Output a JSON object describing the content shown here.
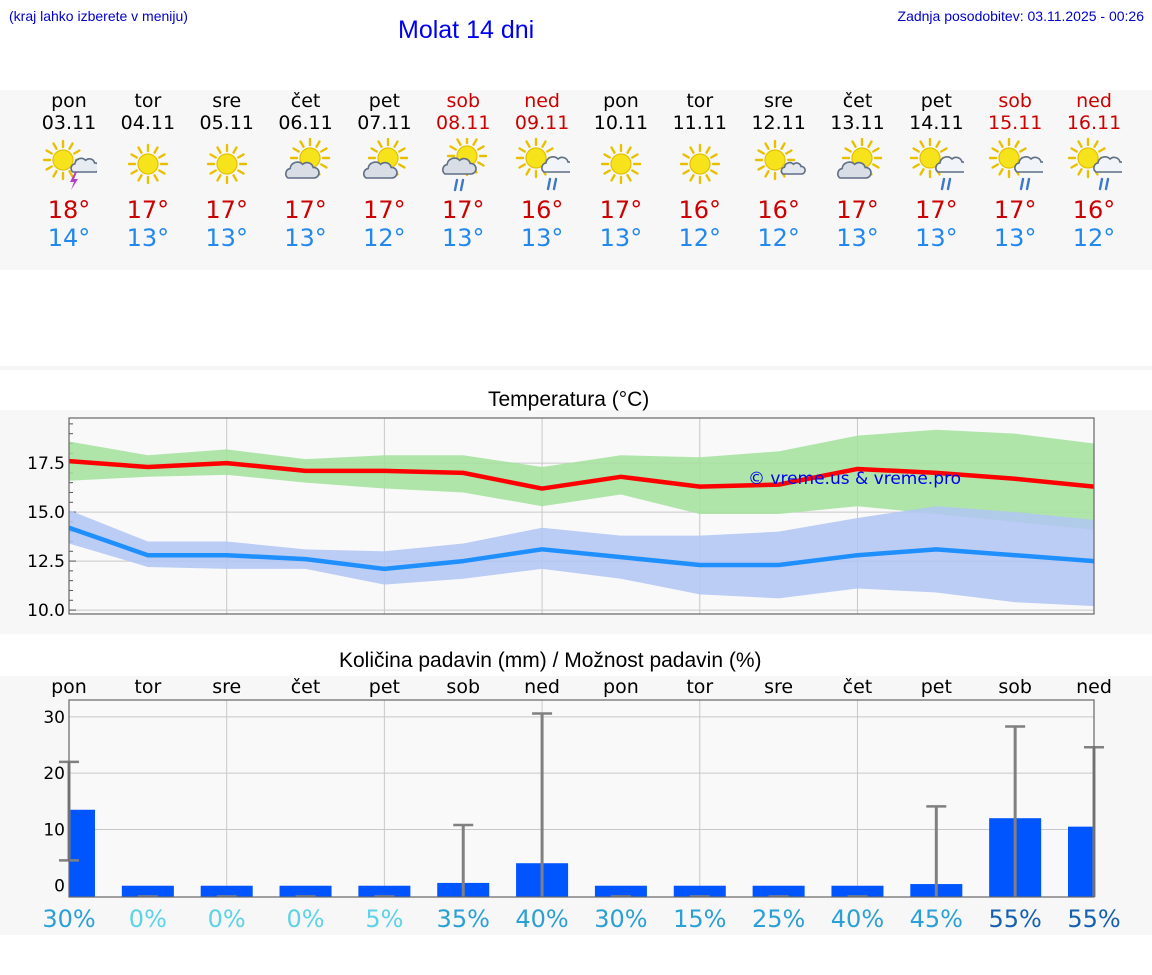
{
  "header": {
    "hint": "(kraj lahko izberete v meniju)",
    "title": "Molat 14 dni",
    "updated": "Zadnja posodobitev: 03.11.2025 - 00:26"
  },
  "days": [
    {
      "name": "pon",
      "date": "03.11",
      "weekend": false,
      "icon": "sun-thunder-icon",
      "max": "18°",
      "min": "14°"
    },
    {
      "name": "tor",
      "date": "04.11",
      "weekend": false,
      "icon": "sun-icon",
      "max": "17°",
      "min": "13°"
    },
    {
      "name": "sre",
      "date": "05.11",
      "weekend": false,
      "icon": "sun-icon",
      "max": "17°",
      "min": "13°"
    },
    {
      "name": "čet",
      "date": "06.11",
      "weekend": false,
      "icon": "sun-cloud-icon",
      "max": "17°",
      "min": "13°"
    },
    {
      "name": "pet",
      "date": "07.11",
      "weekend": false,
      "icon": "sun-cloud-icon",
      "max": "17°",
      "min": "12°"
    },
    {
      "name": "sob",
      "date": "08.11",
      "weekend": true,
      "icon": "sun-cloud-rain-icon",
      "max": "17°",
      "min": "13°"
    },
    {
      "name": "ned",
      "date": "09.11",
      "weekend": true,
      "icon": "sun-rain-icon",
      "max": "16°",
      "min": "13°"
    },
    {
      "name": "pon",
      "date": "10.11",
      "weekend": false,
      "icon": "sun-icon",
      "max": "17°",
      "min": "13°"
    },
    {
      "name": "tor",
      "date": "11.11",
      "weekend": false,
      "icon": "sun-icon",
      "max": "16°",
      "min": "12°"
    },
    {
      "name": "sre",
      "date": "12.11",
      "weekend": false,
      "icon": "sun-small-cloud-icon",
      "max": "16°",
      "min": "12°"
    },
    {
      "name": "čet",
      "date": "13.11",
      "weekend": false,
      "icon": "sun-cloud-icon",
      "max": "17°",
      "min": "13°"
    },
    {
      "name": "pet",
      "date": "14.11",
      "weekend": false,
      "icon": "sun-rain-icon",
      "max": "17°",
      "min": "13°"
    },
    {
      "name": "sob",
      "date": "15.11",
      "weekend": true,
      "icon": "sun-rain-icon",
      "max": "17°",
      "min": "13°"
    },
    {
      "name": "ned",
      "date": "16.11",
      "weekend": true,
      "icon": "sun-rain-icon",
      "max": "16°",
      "min": "12°"
    }
  ],
  "chart_data": [
    {
      "type": "line",
      "title": "Temperatura (°C)",
      "watermark": "© vreme.us & vreme.pro",
      "ylim": [
        9.8,
        19.8
      ],
      "yticks": [
        "10.0",
        "12.5",
        "15.0",
        "17.5"
      ],
      "ytick_values": [
        10,
        12.5,
        15,
        17.5
      ],
      "x": [
        0,
        1,
        2,
        3,
        4,
        5,
        6,
        7,
        8,
        9,
        10,
        11,
        12,
        13
      ],
      "series": [
        {
          "name": "max",
          "color": "#ff0000",
          "values": [
            17.6,
            17.3,
            17.5,
            17.1,
            17.1,
            17.0,
            16.2,
            16.8,
            16.3,
            16.4,
            17.2,
            17.0,
            16.7,
            16.3
          ]
        },
        {
          "name": "min",
          "color": "#1f8fff",
          "values": [
            14.2,
            12.8,
            12.8,
            12.6,
            12.1,
            12.5,
            13.1,
            12.7,
            12.3,
            12.3,
            12.8,
            13.1,
            12.8,
            12.5
          ]
        }
      ],
      "bands": [
        {
          "name": "max-range",
          "color": "#a3e29c",
          "upper": [
            18.6,
            17.9,
            18.2,
            17.7,
            17.9,
            17.9,
            17.3,
            17.9,
            17.8,
            18.1,
            18.9,
            19.2,
            19.0,
            18.5
          ],
          "lower": [
            16.6,
            16.8,
            16.9,
            16.5,
            16.2,
            16.0,
            15.3,
            15.9,
            14.9,
            14.9,
            15.3,
            14.9,
            14.5,
            14.1
          ]
        },
        {
          "name": "min-range",
          "color": "#b0c6f5",
          "upper": [
            15.1,
            13.5,
            13.5,
            13.1,
            13.0,
            13.4,
            14.2,
            13.8,
            13.8,
            14.0,
            14.7,
            15.3,
            15.0,
            14.6
          ],
          "lower": [
            13.4,
            12.2,
            12.1,
            12.1,
            11.3,
            11.6,
            12.1,
            11.6,
            10.8,
            10.6,
            11.1,
            10.9,
            10.4,
            10.2
          ]
        }
      ]
    },
    {
      "type": "bar",
      "title": "Količina padavin (mm) / Možnost padavin (%)",
      "categories": [
        "pon",
        "tor",
        "sre",
        "čet",
        "pet",
        "sob",
        "ned",
        "pon",
        "tor",
        "sre",
        "čet",
        "pet",
        "sob",
        "ned"
      ],
      "ylim": [
        -2,
        33
      ],
      "yticks": [
        "0",
        "10",
        "20",
        "30"
      ],
      "ytick_values": [
        0,
        10,
        20,
        30
      ],
      "values": [
        13.5,
        0,
        0,
        0,
        0,
        0.5,
        4,
        0,
        0,
        0,
        0,
        0.3,
        12,
        10.5
      ],
      "error_high": [
        22,
        0,
        0,
        0,
        0,
        10.8,
        30.6,
        0,
        0,
        0,
        0,
        14.1,
        28.3,
        24.6
      ],
      "error_low": [
        4.5,
        0,
        0,
        0,
        0,
        0,
        0,
        0,
        0,
        0,
        0,
        0,
        0,
        0
      ],
      "probability": [
        "30%",
        "0%",
        "0%",
        "0%",
        "5%",
        "35%",
        "40%",
        "30%",
        "15%",
        "25%",
        "40%",
        "45%",
        "55%",
        "55%"
      ],
      "probability_colors": [
        "#2ba0d6",
        "#5cd3e8",
        "#5cd3e8",
        "#5cd3e8",
        "#5cd3e8",
        "#2ba0d6",
        "#2ba0d6",
        "#2ba0d6",
        "#2ba0d6",
        "#2ba0d6",
        "#2ba0d6",
        "#2ba0d6",
        "#1560b0",
        "#1560b0"
      ],
      "bar_color": "#0055ff"
    }
  ]
}
